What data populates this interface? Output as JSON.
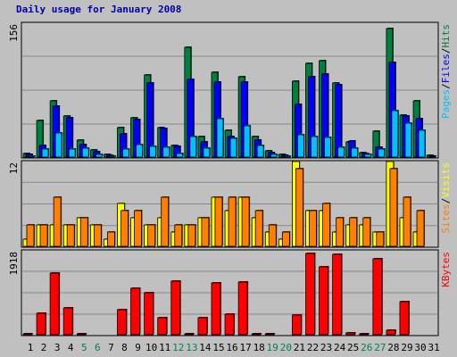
{
  "title": "Daily usage for January 2008",
  "chart_data": {
    "type": "bar",
    "days": [
      "1",
      "2",
      "3",
      "4",
      "5",
      "6",
      "7",
      "8",
      "9",
      "10",
      "11",
      "12",
      "13",
      "14",
      "15",
      "16",
      "17",
      "18",
      "19",
      "20",
      "21",
      "22",
      "23",
      "24",
      "25",
      "26",
      "27",
      "28",
      "29",
      "30",
      "31"
    ],
    "weekend_days": [
      "5",
      "6",
      "12",
      "13",
      "19",
      "20",
      "26",
      "27"
    ],
    "colors": {
      "hits": "#008040",
      "files": "#0000ff",
      "pages": "#00c0ff",
      "visits": "#ffff00",
      "sites": "#ff8000",
      "kbytes": "#ff0000",
      "day_label": "#000000",
      "weekend_label": "#00805c"
    },
    "panels": [
      {
        "name": "top",
        "axis_max_label": "156",
        "ylim": [
          0,
          156
        ],
        "legend": [
          "Pages",
          "Files",
          "Hits"
        ],
        "series": [
          {
            "name": "Hits",
            "color": "#008040",
            "values": [
              4,
              43,
              66,
              48,
              20,
              8,
              3,
              34,
              46,
              96,
              34,
              14,
              128,
              24,
              99,
              31,
              94,
              24,
              7,
              3,
              88,
              109,
              112,
              86,
              18,
              5,
              30,
              150,
              49,
              66,
              2
            ]
          },
          {
            "name": "Files",
            "color": "#0000ff",
            "values": [
              3,
              14,
              59,
              46,
              15,
              6,
              2,
              27,
              44,
              86,
              33,
              12,
              90,
              18,
              87,
              24,
              87,
              20,
              5,
              2,
              61,
              94,
              97,
              84,
              19,
              4,
              11,
              110,
              48,
              45,
              1
            ]
          },
          {
            "name": "Pages",
            "color": "#00c0ff",
            "values": [
              1,
              9,
              28,
              9,
              10,
              3,
              1,
              9,
              15,
              12,
              11,
              4,
              24,
              10,
              45,
              22,
              36,
              14,
              3,
              1,
              26,
              24,
              23,
              11,
              10,
              3,
              9,
              54,
              40,
              31,
              0
            ]
          }
        ]
      },
      {
        "name": "middle",
        "axis_max_label": "12",
        "ylim": [
          0,
          12
        ],
        "legend": [
          "Sites",
          "/",
          "Visits"
        ],
        "series": [
          {
            "name": "Visits",
            "color": "#ffff00",
            "values": [
              1,
              3,
              3,
              3,
              4,
              3,
              1,
              6,
              4,
              3,
              4,
              2,
              3,
              4,
              7,
              5,
              7,
              4,
              2,
              1,
              12,
              5,
              5,
              2,
              3,
              3,
              2,
              12,
              4,
              2,
              0
            ]
          },
          {
            "name": "Sites",
            "color": "#ff8000",
            "values": [
              3,
              3,
              7,
              3,
              4,
              3,
              2,
              5,
              5,
              3,
              7,
              3,
              3,
              4,
              7,
              7,
              7,
              5,
              3,
              2,
              11,
              5,
              6,
              4,
              4,
              4,
              2,
              11,
              7,
              5,
              0
            ]
          }
        ]
      },
      {
        "name": "bottom",
        "axis_max_label": "1918",
        "ylim": [
          0,
          1918
        ],
        "legend": [
          "KBytes"
        ],
        "series": [
          {
            "name": "KBytes",
            "color": "#ff0000",
            "values": [
              25,
              480,
              1400,
              620,
              30,
              10,
              8,
              580,
              1065,
              953,
              396,
              1229,
              30,
              384,
              1174,
              461,
              1212,
              26,
              22,
              4,
              448,
              1864,
              1546,
              1838,
              34,
              15,
              1735,
              110,
              762,
              0,
              0
            ]
          }
        ]
      }
    ]
  }
}
